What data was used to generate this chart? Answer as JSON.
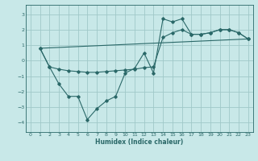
{
  "title": "",
  "xlabel": "Humidex (Indice chaleur)",
  "bg_color": "#c8e8e8",
  "grid_color": "#a0c8c8",
  "line_color": "#2a6868",
  "xlim": [
    -0.5,
    23.5
  ],
  "ylim": [
    -4.6,
    3.6
  ],
  "xticks": [
    0,
    1,
    2,
    3,
    4,
    5,
    6,
    7,
    8,
    9,
    10,
    11,
    12,
    13,
    14,
    15,
    16,
    17,
    18,
    19,
    20,
    21,
    22,
    23
  ],
  "yticks": [
    -4,
    -3,
    -2,
    -1,
    0,
    1,
    2,
    3
  ],
  "line1_x": [
    1,
    2,
    3,
    4,
    5,
    6,
    7,
    8,
    9,
    10,
    11,
    12,
    13,
    14,
    15,
    16,
    17,
    18,
    19,
    20,
    21,
    22,
    23
  ],
  "line1_y": [
    0.8,
    -0.4,
    -1.5,
    -2.3,
    -2.3,
    -3.8,
    -3.1,
    -2.6,
    -2.3,
    -0.8,
    -0.5,
    0.5,
    -0.8,
    2.7,
    2.5,
    2.7,
    1.7,
    1.7,
    1.8,
    2.0,
    2.0,
    1.8,
    1.4
  ],
  "line2_x": [
    1,
    2,
    3,
    4,
    5,
    6,
    7,
    8,
    9,
    10,
    11,
    12,
    13,
    14,
    15,
    16,
    17,
    18,
    19,
    20,
    21,
    22,
    23
  ],
  "line2_y": [
    0.8,
    -0.4,
    -0.55,
    -0.65,
    -0.7,
    -0.75,
    -0.75,
    -0.7,
    -0.65,
    -0.6,
    -0.55,
    -0.45,
    -0.4,
    1.5,
    1.8,
    2.0,
    1.7,
    1.7,
    1.8,
    2.0,
    2.0,
    1.8,
    1.4
  ],
  "line3_x": [
    1,
    23
  ],
  "line3_y": [
    0.8,
    1.4
  ]
}
